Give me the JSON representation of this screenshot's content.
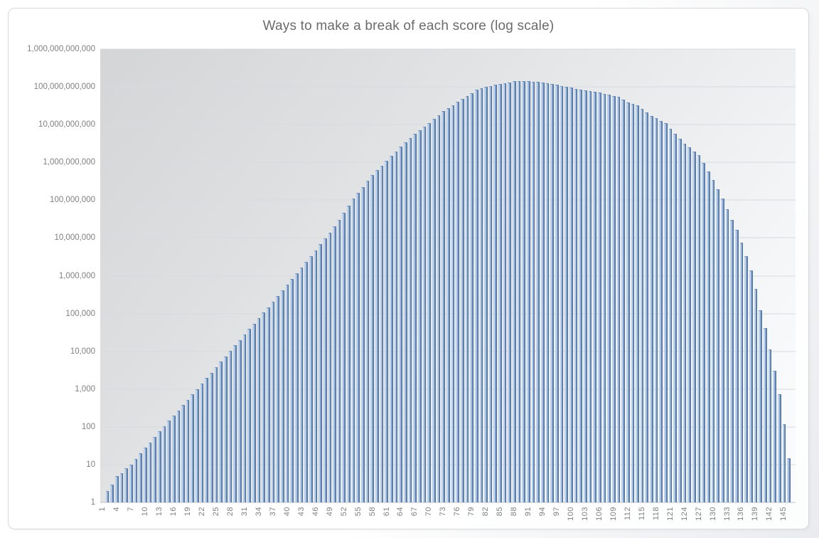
{
  "chart_data": {
    "type": "bar",
    "title": "Ways to make a break of each score (log scale)",
    "xlabel": "",
    "ylabel": "",
    "y_log_scale": true,
    "log_max_exponent": 12,
    "ylim": [
      1,
      1000000000000
    ],
    "grid": true,
    "legend": "none",
    "bar_color_main": "#6f94c3",
    "bar_color_highlight": "#eaf1f9",
    "bar_color_edge": "#4f739e",
    "x_tick_start": 1,
    "x_tick_step": 3,
    "x_tick_labels": [
      "1",
      "4",
      "7",
      "10",
      "13",
      "16",
      "19",
      "22",
      "25",
      "28",
      "31",
      "34",
      "37",
      "40",
      "43",
      "46",
      "49",
      "52",
      "55",
      "58",
      "61",
      "64",
      "67",
      "70",
      "73",
      "76",
      "79",
      "82",
      "85",
      "88",
      "91",
      "94",
      "97",
      "100",
      "103",
      "106",
      "109",
      "112",
      "115",
      "118",
      "121",
      "124",
      "127",
      "130",
      "133",
      "136",
      "139",
      "142",
      "145"
    ],
    "y_tick_labels": [
      "1,000,000,000,000",
      "100,000,000,000",
      "10,000,000,000",
      "1,000,000,000",
      "100,000,000",
      "10,000,000",
      "1,000,000",
      "100,000",
      "10,000",
      "1,000",
      "100",
      "10",
      "1"
    ],
    "scores_range": [
      1,
      147
    ],
    "values": [
      1,
      2,
      3,
      5,
      6,
      8,
      10,
      14,
      20,
      28,
      39,
      55,
      76,
      105,
      145,
      200,
      275,
      380,
      525,
      724,
      1010,
      1400,
      1960,
      2730,
      3800,
      5300,
      7380,
      10300,
      14300,
      20000,
      27800,
      38700,
      54000,
      75200,
      105000,
      148000,
      209000,
      295000,
      417000,
      589000,
      832000,
      1180000,
      1660000,
      2340000,
      3310000,
      4740000,
      6790000,
      9730000,
      13900000,
      20000000,
      30700000,
      47300000,
      72900000,
      112000000,
      159000000,
      226000000,
      322000000,
      457000000,
      617000000,
      832000000,
      1120000000,
      1510000000,
      1980000000,
      2600000000,
      3410000000,
      4470000000,
      5620000000,
      7080000000,
      8910000000,
      11200000000,
      14200000000,
      18100000000,
      22900000000,
      27500000000,
      33100000000,
      39800000000,
      47900000000,
      57500000000,
      69200000000,
      83200000000,
      90500000000,
      98400000000,
      107000000000,
      112000000000,
      117000000000,
      125000000000,
      133000000000,
      141000000000,
      145000000000,
      143000000000,
      141000000000,
      138000000000,
      135000000000,
      132000000000,
      126000000000,
      120000000000,
      114000000000,
      107000000000,
      101000000000,
      95500000000,
      89800000000,
      84500000000,
      79400000000,
      76700000000,
      74100000000,
      70300000000,
      66500000000,
      63100000000,
      58200000000,
      53700000000,
      45200000000,
      38000000000,
      35100000000,
      32400000000,
      25700000000,
      20900000000,
      17000000000,
      14700000000,
      12700000000,
      11000000000,
      7940000000,
      5750000000,
      4270000000,
      3160000000,
      2490000000,
      1960000000,
      1550000000,
      955000000,
      575000000,
      347000000,
      195000000,
      110000000,
      57500000,
      30200000,
      16200000,
      7410000,
      3310000,
      1410000,
      447000,
      120000,
      40700,
      11200,
      3020,
      724,
      120,
      15,
      1
    ]
  }
}
